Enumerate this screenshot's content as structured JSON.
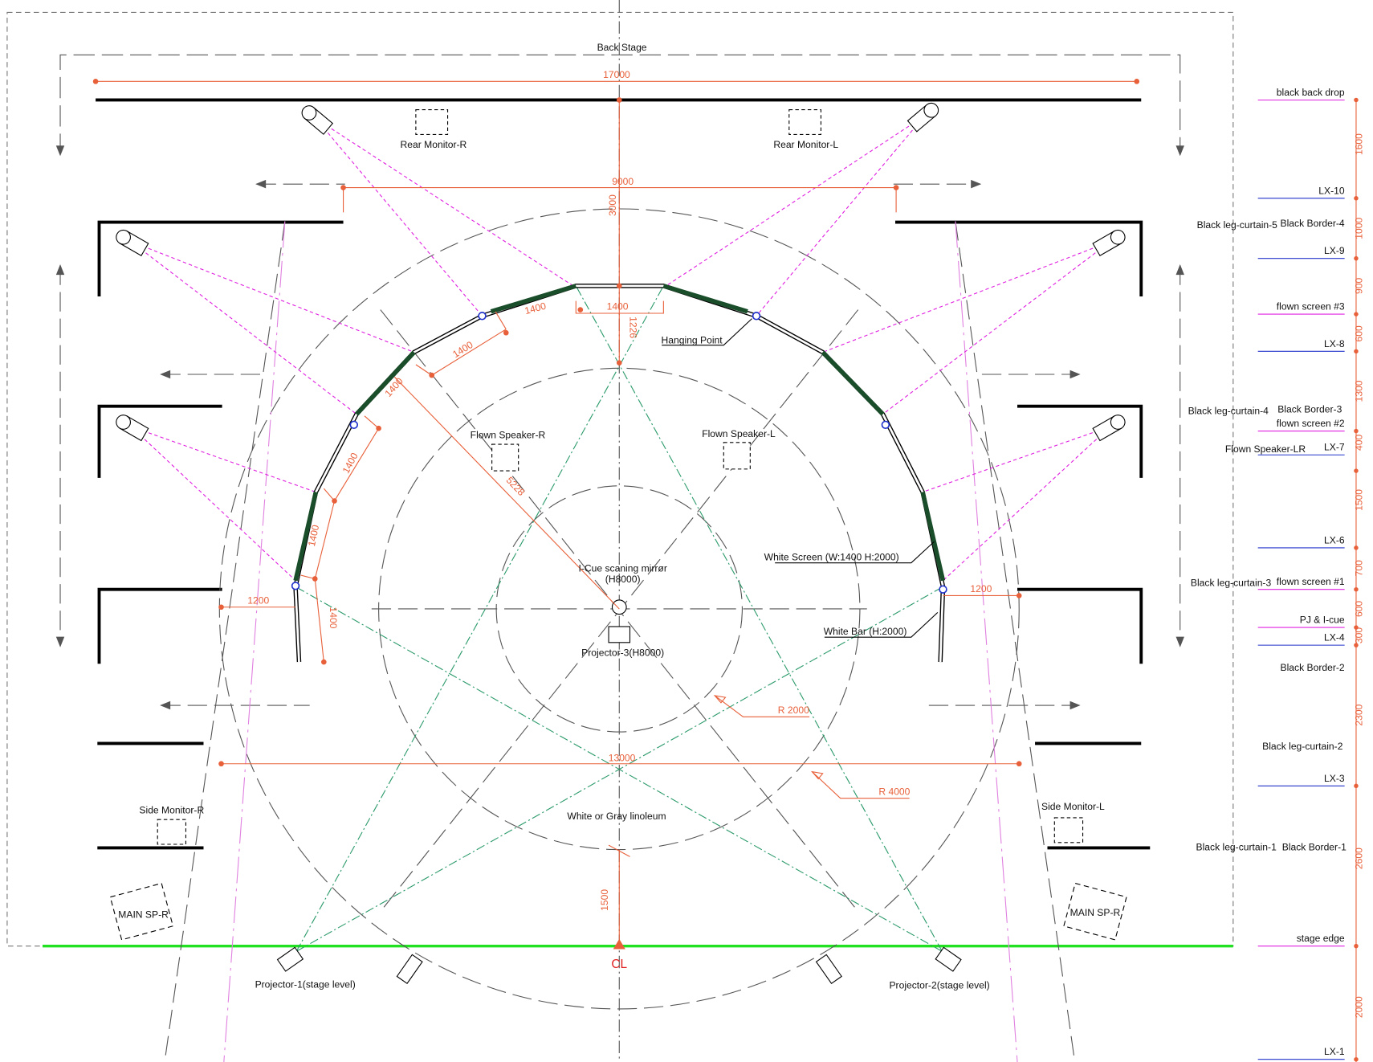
{
  "stage": {
    "back_stage": "Back Stage",
    "cl": "CL",
    "floor": "White or Gray linoleum"
  },
  "labels": [
    "Rear Monitor-R",
    "Rear Monitor-L",
    "Flown Speaker-R",
    "Flown Speaker-L",
    "Hanging Point",
    "White Screen (W:1400 H:2000)",
    "White Bar (H:2000)",
    "I-Cue scaning mirrør",
    "(H8000)",
    "Projector-3(H8000)",
    "Side Monitor-R",
    "Side Monitor-L",
    "MAIN SP-R",
    "MAIN SP-R",
    "Projector-1(stage level)",
    "Projector-2(stage level)"
  ],
  "dimensions": [
    "17000",
    "9000",
    "3000",
    "1400",
    "1400",
    "1226",
    "1400",
    "1400",
    "5228",
    "1400",
    "1400",
    "1400",
    "1200",
    "1200",
    "13000",
    "R 2000",
    "R 4000",
    "1500"
  ],
  "legend": {
    "lines": [
      "black back drop",
      "LX-10",
      "LX-9",
      "flown screen #3",
      "LX-8",
      "flown screen #2",
      "LX-7",
      "LX-6",
      "flown screen #1",
      "PJ & I-cue",
      "LX-4",
      "LX-3",
      "stage edge",
      "LX-1"
    ],
    "notes": [
      "Black leg-curtain-5",
      "Black Border-4",
      "Black leg-curtain-4",
      "Black Border-3",
      "Flown Speaker-LR",
      "Black leg-curtain-3",
      "Black Border-2",
      "Black leg-curtain-2",
      "Black leg-curtain-1",
      "Black Border-1"
    ],
    "spacings": [
      "1600",
      "1000",
      "900",
      "600",
      "1300",
      "400",
      "1500",
      "700",
      "600",
      "300",
      "2300",
      "2600",
      "2000"
    ]
  }
}
